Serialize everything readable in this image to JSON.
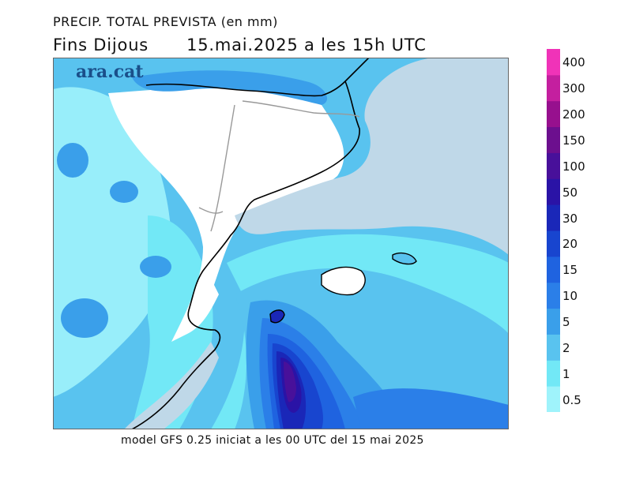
{
  "title_line1": "PRECIP. TOTAL PREVISTA (en mm)",
  "title_period": "Fins Dijous",
  "title_valid": "15.mai.2025 a les 15h UTC",
  "brand": "ara.cat",
  "footer": "model GFS 0.25 iniciat a les 00 UTC del 15 mai 2025",
  "legend": {
    "levels": [
      "0.5",
      "1",
      "2",
      "5",
      "10",
      "15",
      "20",
      "30",
      "50",
      "100",
      "150",
      "200",
      "300",
      "400"
    ],
    "colors": [
      "#9ff3fb",
      "#72e8f6",
      "#59c3ef",
      "#3a9fea",
      "#2b7fe8",
      "#1f63e0",
      "#1845cf",
      "#1a27b8",
      "#2a13a6",
      "#48109a",
      "#6c0f8e",
      "#97108e",
      "#c41f9f",
      "#f033b8"
    ]
  },
  "colors": {
    "land_dry": "#ffffff",
    "sea_dry": "#bfd8e8",
    "coastline": "#000000",
    "borders": "#999999"
  }
}
